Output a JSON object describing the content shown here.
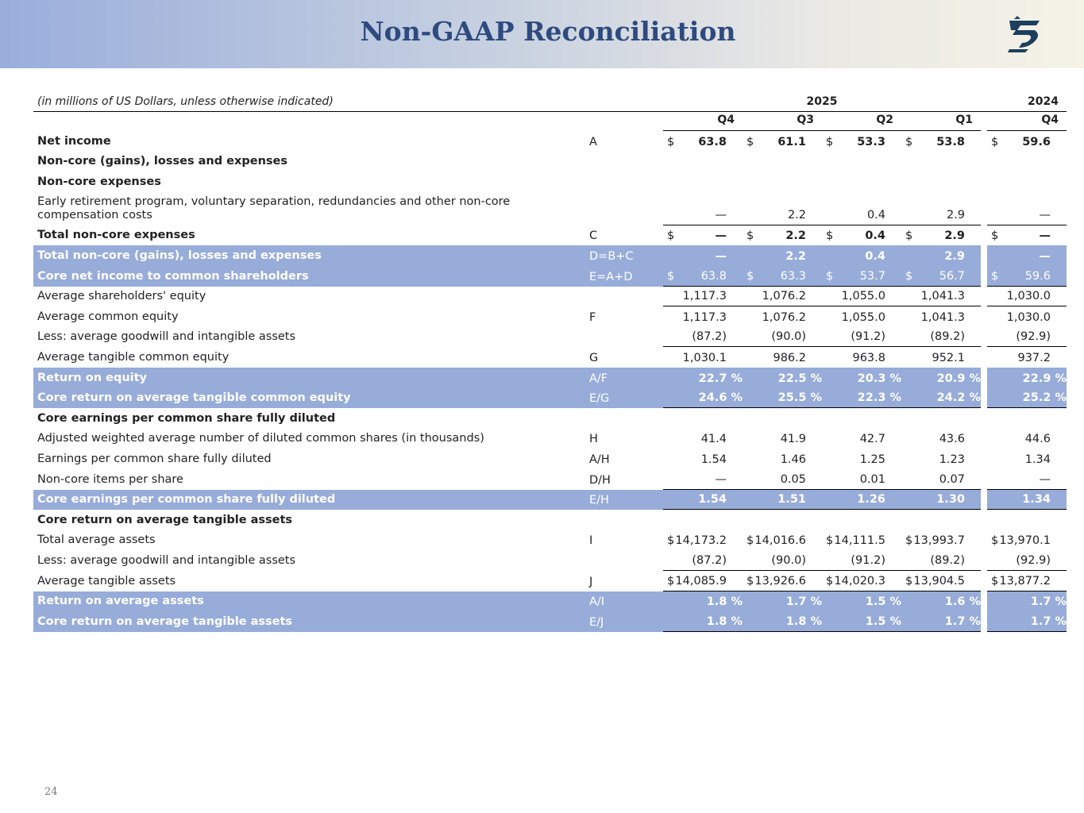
{
  "header": {
    "title": "Non-GAAP Reconciliation"
  },
  "table": {
    "note": "(in millions of US Dollars, unless otherwise indicated)",
    "years": [
      "2025",
      "2024"
    ],
    "quarters": [
      "Q4",
      "Q3",
      "Q2",
      "Q1",
      "Q4"
    ],
    "rows": [
      {
        "label": "Net income",
        "code": "A",
        "currency": "$",
        "cells": [
          "63.8",
          "61.1",
          "53.3",
          "53.8",
          "59.6"
        ]
      },
      {
        "label": "Non-core (gains), losses and expenses"
      },
      {
        "label": "Non-core expenses"
      },
      {
        "label": "Early retirement program, voluntary separation, redundancies and other non-core compensation costs",
        "cells": [
          "—",
          "2.2",
          "0.4",
          "2.9",
          "—"
        ]
      },
      {
        "label": "Total non-core expenses",
        "code": "C",
        "currency": "$",
        "cells": [
          "—",
          "2.2",
          "0.4",
          "2.9",
          "—"
        ]
      },
      {
        "label": "Total non-core (gains), losses and expenses",
        "code": "D=B+C",
        "cells": [
          "—",
          "2.2",
          "0.4",
          "2.9",
          "—"
        ]
      },
      {
        "label": "Core net income to common shareholders",
        "code": "E=A+D",
        "currency": "$",
        "cells": [
          "63.8",
          "63.3",
          "53.7",
          "56.7",
          "59.6"
        ]
      },
      {
        "label": "Average shareholders' equity",
        "cells": [
          "1,117.3",
          "1,076.2",
          "1,055.0",
          "1,041.3",
          "1,030.0"
        ]
      },
      {
        "label": "Average common equity",
        "code": "F",
        "cells": [
          "1,117.3",
          "1,076.2",
          "1,055.0",
          "1,041.3",
          "1,030.0"
        ]
      },
      {
        "label": "Less: average goodwill and intangible assets",
        "cells": [
          "(87.2)",
          "(90.0)",
          "(91.2)",
          "(89.2)",
          "(92.9)"
        ]
      },
      {
        "label": "Average tangible common equity",
        "code": "G",
        "cells": [
          "1,030.1",
          "986.2",
          "963.8",
          "952.1",
          "937.2"
        ]
      },
      {
        "label": "Return on equity",
        "code": "A/F",
        "cells": [
          "22.7 %",
          "22.5 %",
          "20.3 %",
          "20.9 %",
          "22.9 %"
        ]
      },
      {
        "label": "Core return on average tangible common equity",
        "code": "E/G",
        "cells": [
          "24.6 %",
          "25.5 %",
          "22.3 %",
          "24.2 %",
          "25.2 %"
        ]
      },
      {
        "label": "Core earnings per common share fully diluted"
      },
      {
        "label": "Adjusted weighted average number of diluted common shares (in thousands)",
        "code": "H",
        "cells": [
          "41.4",
          "41.9",
          "42.7",
          "43.6",
          "44.6"
        ]
      },
      {
        "label": "Earnings per common share fully diluted",
        "code": "A/H",
        "cells": [
          "1.54",
          "1.46",
          "1.25",
          "1.23",
          "1.34"
        ]
      },
      {
        "label": "Non-core items per share",
        "code": "D/H",
        "cells": [
          "—",
          "0.05",
          "0.01",
          "0.07",
          "—"
        ]
      },
      {
        "label": "Core earnings per common share fully diluted",
        "code": "E/H",
        "cells": [
          "1.54",
          "1.51",
          "1.26",
          "1.30",
          "1.34"
        ]
      },
      {
        "label": "Core return on average tangible assets"
      },
      {
        "label": "Total average assets",
        "code": "I",
        "currency": "$",
        "cells": [
          "14,173.2",
          "14,016.6",
          "14,111.5",
          "13,993.7",
          "13,970.1"
        ]
      },
      {
        "label": "Less: average goodwill and intangible assets",
        "cells": [
          "(87.2)",
          "(90.0)",
          "(91.2)",
          "(89.2)",
          "(92.9)"
        ]
      },
      {
        "label": "Average tangible assets",
        "code": "J",
        "currency": "$",
        "cells": [
          "14,085.9",
          "13,926.6",
          "14,020.3",
          "13,904.5",
          "13,877.2"
        ]
      },
      {
        "label": "Return on average assets",
        "code": "A/I",
        "cells": [
          "1.8 %",
          "1.7 %",
          "1.5 %",
          "1.6 %",
          "1.7 %"
        ]
      },
      {
        "label": "Core return on average tangible assets",
        "code": "E/J",
        "cells": [
          "1.8 %",
          "1.8 %",
          "1.5 %",
          "1.7 %",
          "1.7 %"
        ]
      }
    ]
  },
  "page_number": "24"
}
